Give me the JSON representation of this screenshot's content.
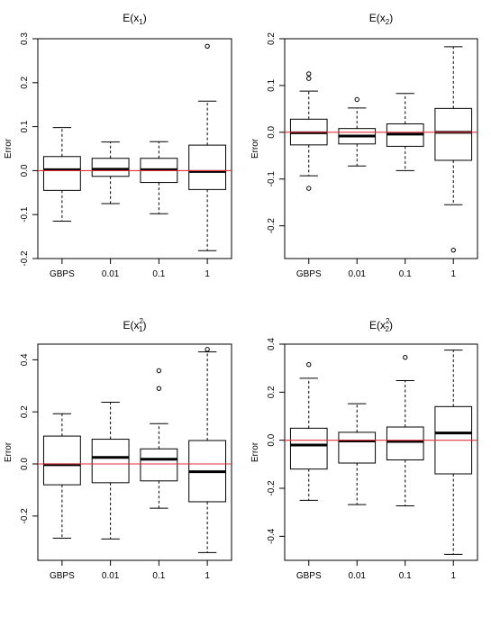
{
  "chart_data": [
    {
      "type": "boxplot",
      "title": "E(x",
      "title_sub": "1",
      "title_sup": "",
      "title_close": ")",
      "ylabel": "Error",
      "categories": [
        "GBPS",
        "0.01",
        "0.1",
        "1"
      ],
      "ylim": [
        -0.2,
        0.3
      ],
      "yticks": [
        -0.2,
        -0.1,
        0.0,
        0.1,
        0.2,
        0.3
      ],
      "ytick_labels": [
        "-0.2",
        "-0.1",
        "0.0",
        "0.1",
        "0.2",
        "0.3"
      ],
      "reference_line": 0,
      "boxes": [
        {
          "whisker_low": -0.115,
          "q1": -0.045,
          "median": 0.002,
          "q3": 0.032,
          "whisker_high": 0.098,
          "outliers": []
        },
        {
          "whisker_low": -0.075,
          "q1": -0.013,
          "median": 0.003,
          "q3": 0.028,
          "whisker_high": 0.065,
          "outliers": []
        },
        {
          "whisker_low": -0.098,
          "q1": -0.027,
          "median": 0.002,
          "q3": 0.028,
          "whisker_high": 0.066,
          "outliers": []
        },
        {
          "whisker_low": -0.182,
          "q1": -0.043,
          "median": -0.002,
          "q3": 0.058,
          "whisker_high": 0.158,
          "outliers": [
            0.283
          ]
        }
      ]
    },
    {
      "type": "boxplot",
      "title": "E(x",
      "title_sub": "2",
      "title_sup": "",
      "title_close": ")",
      "ylabel": "Error",
      "categories": [
        "GBPS",
        "0.01",
        "0.1",
        "1"
      ],
      "ylim": [
        -0.27,
        0.2
      ],
      "yticks": [
        -0.2,
        -0.1,
        0.0,
        0.1,
        0.2
      ],
      "ytick_labels": [
        "-0.2",
        "-0.1",
        "0.0",
        "0.1",
        "0.2"
      ],
      "reference_line": 0,
      "boxes": [
        {
          "whisker_low": -0.093,
          "q1": -0.027,
          "median": -0.001,
          "q3": 0.028,
          "whisker_high": 0.088,
          "outliers": [
            0.115,
            0.125,
            -0.12
          ]
        },
        {
          "whisker_low": -0.072,
          "q1": -0.025,
          "median": -0.008,
          "q3": 0.008,
          "whisker_high": 0.052,
          "outliers": [
            0.07
          ]
        },
        {
          "whisker_low": -0.082,
          "q1": -0.03,
          "median": -0.004,
          "q3": 0.018,
          "whisker_high": 0.083,
          "outliers": []
        },
        {
          "whisker_low": -0.155,
          "q1": -0.06,
          "median": 0.0,
          "q3": 0.051,
          "whisker_high": 0.183,
          "outliers": [
            -0.252
          ]
        }
      ]
    },
    {
      "type": "boxplot",
      "title": "E(x",
      "title_sub": "1",
      "title_sup": "2",
      "title_close": ")",
      "ylabel": "Error",
      "categories": [
        "GBPS",
        "0.01",
        "0.1",
        "1"
      ],
      "ylim": [
        -0.37,
        0.46
      ],
      "yticks": [
        -0.2,
        0.0,
        0.2,
        0.4
      ],
      "ytick_labels": [
        "-0.2",
        "0.0",
        "0.2",
        "0.4"
      ],
      "reference_line": 0,
      "boxes": [
        {
          "whisker_low": -0.285,
          "q1": -0.08,
          "median": -0.003,
          "q3": 0.107,
          "whisker_high": 0.193,
          "outliers": []
        },
        {
          "whisker_low": -0.288,
          "q1": -0.072,
          "median": 0.025,
          "q3": 0.095,
          "whisker_high": 0.237,
          "outliers": []
        },
        {
          "whisker_low": -0.17,
          "q1": -0.065,
          "median": 0.018,
          "q3": 0.058,
          "whisker_high": 0.155,
          "outliers": [
            0.29,
            0.358
          ]
        },
        {
          "whisker_low": -0.34,
          "q1": -0.145,
          "median": -0.03,
          "q3": 0.09,
          "whisker_high": 0.43,
          "outliers": [
            0.44
          ]
        }
      ]
    },
    {
      "type": "boxplot",
      "title": "E(x",
      "title_sub": "2",
      "title_sup": "2",
      "title_close": ")",
      "ylabel": "Error",
      "categories": [
        "GBPS",
        "0.01",
        "0.1",
        "1"
      ],
      "ylim": [
        -0.5,
        0.4
      ],
      "yticks": [
        -0.4,
        -0.2,
        0.0,
        0.2,
        0.4
      ],
      "ytick_labels": [
        "-0.4",
        "-0.2",
        "0.0",
        "0.2",
        "0.4"
      ],
      "reference_line": 0,
      "boxes": [
        {
          "whisker_low": -0.25,
          "q1": -0.12,
          "median": -0.02,
          "q3": 0.05,
          "whisker_high": 0.258,
          "outliers": [
            0.315
          ]
        },
        {
          "whisker_low": -0.268,
          "q1": -0.095,
          "median": -0.003,
          "q3": 0.033,
          "whisker_high": 0.152,
          "outliers": []
        },
        {
          "whisker_low": -0.273,
          "q1": -0.082,
          "median": -0.005,
          "q3": 0.055,
          "whisker_high": 0.248,
          "outliers": [
            0.345
          ]
        },
        {
          "whisker_low": -0.475,
          "q1": -0.14,
          "median": 0.03,
          "q3": 0.14,
          "whisker_high": 0.375,
          "outliers": []
        }
      ]
    }
  ],
  "colors": {
    "reference_line": "#e0303a",
    "box_stroke": "#000000",
    "median": "#000000",
    "background": "#ffffff"
  }
}
